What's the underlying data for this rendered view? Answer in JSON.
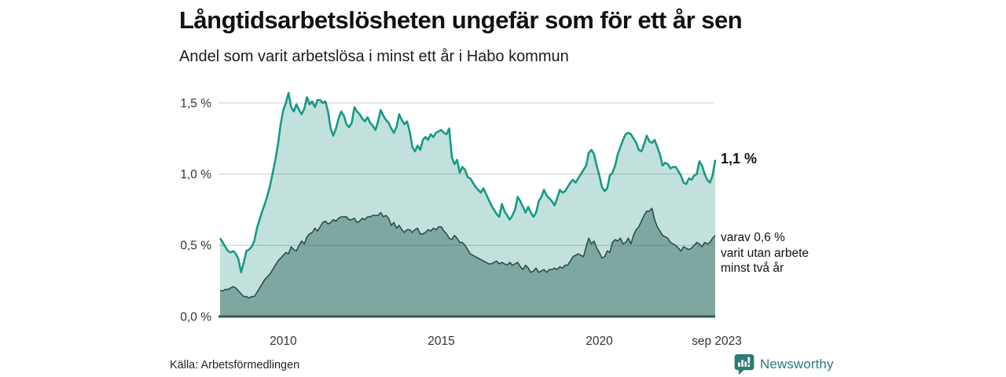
{
  "header": {
    "title": "Långtidsarbetslösheten ungefär som för ett år sen",
    "subtitle": "Andel som varit arbetslösa i minst ett år i Habo kommun"
  },
  "annotations": {
    "total_label": "1,1 %",
    "detail_lines": [
      "varav 0,6 %",
      "varit utan arbete",
      "minst två år"
    ]
  },
  "footer": {
    "source": "Källa: Arbetsförmedlingen",
    "logo_text": "Newsworthy"
  },
  "colors": {
    "line_total": "#169a87",
    "fill_total": "#c3e1dc",
    "line_two_year": "#2e4d48",
    "fill_two_year": "#7ea7a1",
    "grid": "rgba(75,90,86,0.30)",
    "axis_baseline": "#3b5751",
    "logo_teal": "#2b7d73"
  },
  "chart_data": {
    "type": "area",
    "title": "Långtidsarbetslösheten ungefär som för ett år sen",
    "subtitle": "Andel som varit arbetslösa i minst ett år i Habo kommun",
    "unit": "%",
    "frequency": "monthly",
    "x_start": "2008-01",
    "x_end": "2023-09",
    "ylim": [
      0,
      1.5
    ],
    "grid": true,
    "legend": "annotated at line ends",
    "y_ticks": [
      {
        "v": 0.0,
        "label": "0,0 %"
      },
      {
        "v": 0.5,
        "label": "0,5 %"
      },
      {
        "v": 1.0,
        "label": "1,0 %"
      },
      {
        "v": 1.5,
        "label": "1,5 %"
      }
    ],
    "x_ticks": [
      {
        "year": 2010.0,
        "label": "2010"
      },
      {
        "year": 2015.0,
        "label": "2015"
      },
      {
        "year": 2020.0,
        "label": "2020"
      },
      {
        "year": 2023.667,
        "label": "sep 2023"
      }
    ],
    "series": [
      {
        "name": "Andel arbetslösa minst ett år",
        "latest_label": "1,1 %",
        "line_color": "#169a87",
        "fill_color": "#c3e1dc",
        "line_width": 2.6,
        "values": [
          0.55,
          0.52,
          0.49,
          0.46,
          0.45,
          0.46,
          0.44,
          0.4,
          0.31,
          0.38,
          0.46,
          0.47,
          0.49,
          0.53,
          0.62,
          0.68,
          0.74,
          0.79,
          0.85,
          0.92,
          1.01,
          1.1,
          1.21,
          1.35,
          1.45,
          1.5,
          1.57,
          1.47,
          1.44,
          1.49,
          1.45,
          1.42,
          1.46,
          1.54,
          1.49,
          1.51,
          1.47,
          1.52,
          1.52,
          1.5,
          1.51,
          1.44,
          1.32,
          1.27,
          1.32,
          1.39,
          1.44,
          1.41,
          1.35,
          1.33,
          1.36,
          1.47,
          1.44,
          1.42,
          1.39,
          1.37,
          1.4,
          1.36,
          1.34,
          1.31,
          1.37,
          1.45,
          1.41,
          1.38,
          1.36,
          1.32,
          1.29,
          1.33,
          1.42,
          1.38,
          1.35,
          1.37,
          1.3,
          1.19,
          1.16,
          1.2,
          1.17,
          1.24,
          1.26,
          1.24,
          1.28,
          1.26,
          1.29,
          1.3,
          1.31,
          1.29,
          1.28,
          1.32,
          1.12,
          1.07,
          1.1,
          1.01,
          1.05,
          1.03,
          0.98,
          0.97,
          0.94,
          0.91,
          0.89,
          0.87,
          0.9,
          0.86,
          0.82,
          0.78,
          0.75,
          0.72,
          0.7,
          0.79,
          0.74,
          0.71,
          0.68,
          0.71,
          0.75,
          0.84,
          0.81,
          0.77,
          0.73,
          0.77,
          0.73,
          0.7,
          0.73,
          0.81,
          0.84,
          0.89,
          0.85,
          0.83,
          0.81,
          0.78,
          0.83,
          0.89,
          0.87,
          0.88,
          0.91,
          0.94,
          0.96,
          0.94,
          0.97,
          1.0,
          1.03,
          1.06,
          1.15,
          1.17,
          1.14,
          1.06,
          0.99,
          0.91,
          0.88,
          0.9,
          0.99,
          1.01,
          1.06,
          1.14,
          1.19,
          1.24,
          1.28,
          1.29,
          1.28,
          1.25,
          1.22,
          1.17,
          1.16,
          1.21,
          1.27,
          1.23,
          1.22,
          1.24,
          1.19,
          1.14,
          1.06,
          1.08,
          1.07,
          1.04,
          1.05,
          1.05,
          1.02,
          0.99,
          0.94,
          0.93,
          0.97,
          0.96,
          0.99,
          1.0,
          1.09,
          1.06,
          1.0,
          0.96,
          0.94,
          0.99,
          1.1
        ]
      },
      {
        "name": "varav utan arbete minst två år",
        "latest_label": "0,6 %",
        "line_color": "#2e4d48",
        "fill_color": "#7ea7a1",
        "line_width": 1.6,
        "values": [
          0.18,
          0.18,
          0.19,
          0.19,
          0.2,
          0.21,
          0.2,
          0.18,
          0.16,
          0.14,
          0.14,
          0.13,
          0.14,
          0.14,
          0.17,
          0.2,
          0.23,
          0.26,
          0.28,
          0.3,
          0.33,
          0.36,
          0.39,
          0.41,
          0.43,
          0.45,
          0.44,
          0.49,
          0.47,
          0.46,
          0.5,
          0.53,
          0.51,
          0.56,
          0.58,
          0.59,
          0.62,
          0.6,
          0.63,
          0.66,
          0.67,
          0.65,
          0.66,
          0.68,
          0.67,
          0.69,
          0.7,
          0.7,
          0.7,
          0.68,
          0.68,
          0.69,
          0.66,
          0.67,
          0.69,
          0.68,
          0.7,
          0.7,
          0.71,
          0.71,
          0.71,
          0.73,
          0.7,
          0.71,
          0.69,
          0.64,
          0.66,
          0.62,
          0.64,
          0.61,
          0.59,
          0.61,
          0.61,
          0.59,
          0.61,
          0.62,
          0.58,
          0.58,
          0.59,
          0.61,
          0.6,
          0.62,
          0.61,
          0.63,
          0.63,
          0.6,
          0.58,
          0.55,
          0.54,
          0.57,
          0.55,
          0.52,
          0.52,
          0.5,
          0.47,
          0.44,
          0.43,
          0.42,
          0.41,
          0.4,
          0.39,
          0.38,
          0.37,
          0.37,
          0.38,
          0.39,
          0.37,
          0.38,
          0.37,
          0.36,
          0.38,
          0.36,
          0.37,
          0.38,
          0.35,
          0.33,
          0.36,
          0.34,
          0.31,
          0.32,
          0.34,
          0.31,
          0.32,
          0.33,
          0.31,
          0.33,
          0.33,
          0.34,
          0.33,
          0.35,
          0.34,
          0.36,
          0.36,
          0.39,
          0.42,
          0.43,
          0.44,
          0.43,
          0.42,
          0.49,
          0.55,
          0.51,
          0.53,
          0.48,
          0.45,
          0.41,
          0.42,
          0.46,
          0.45,
          0.52,
          0.54,
          0.53,
          0.55,
          0.51,
          0.52,
          0.55,
          0.51,
          0.57,
          0.61,
          0.63,
          0.67,
          0.71,
          0.74,
          0.74,
          0.76,
          0.68,
          0.63,
          0.6,
          0.57,
          0.56,
          0.55,
          0.52,
          0.51,
          0.5,
          0.48,
          0.46,
          0.49,
          0.48,
          0.47,
          0.48,
          0.5,
          0.52,
          0.51,
          0.49,
          0.52,
          0.51,
          0.52,
          0.55,
          0.57
        ]
      }
    ]
  }
}
